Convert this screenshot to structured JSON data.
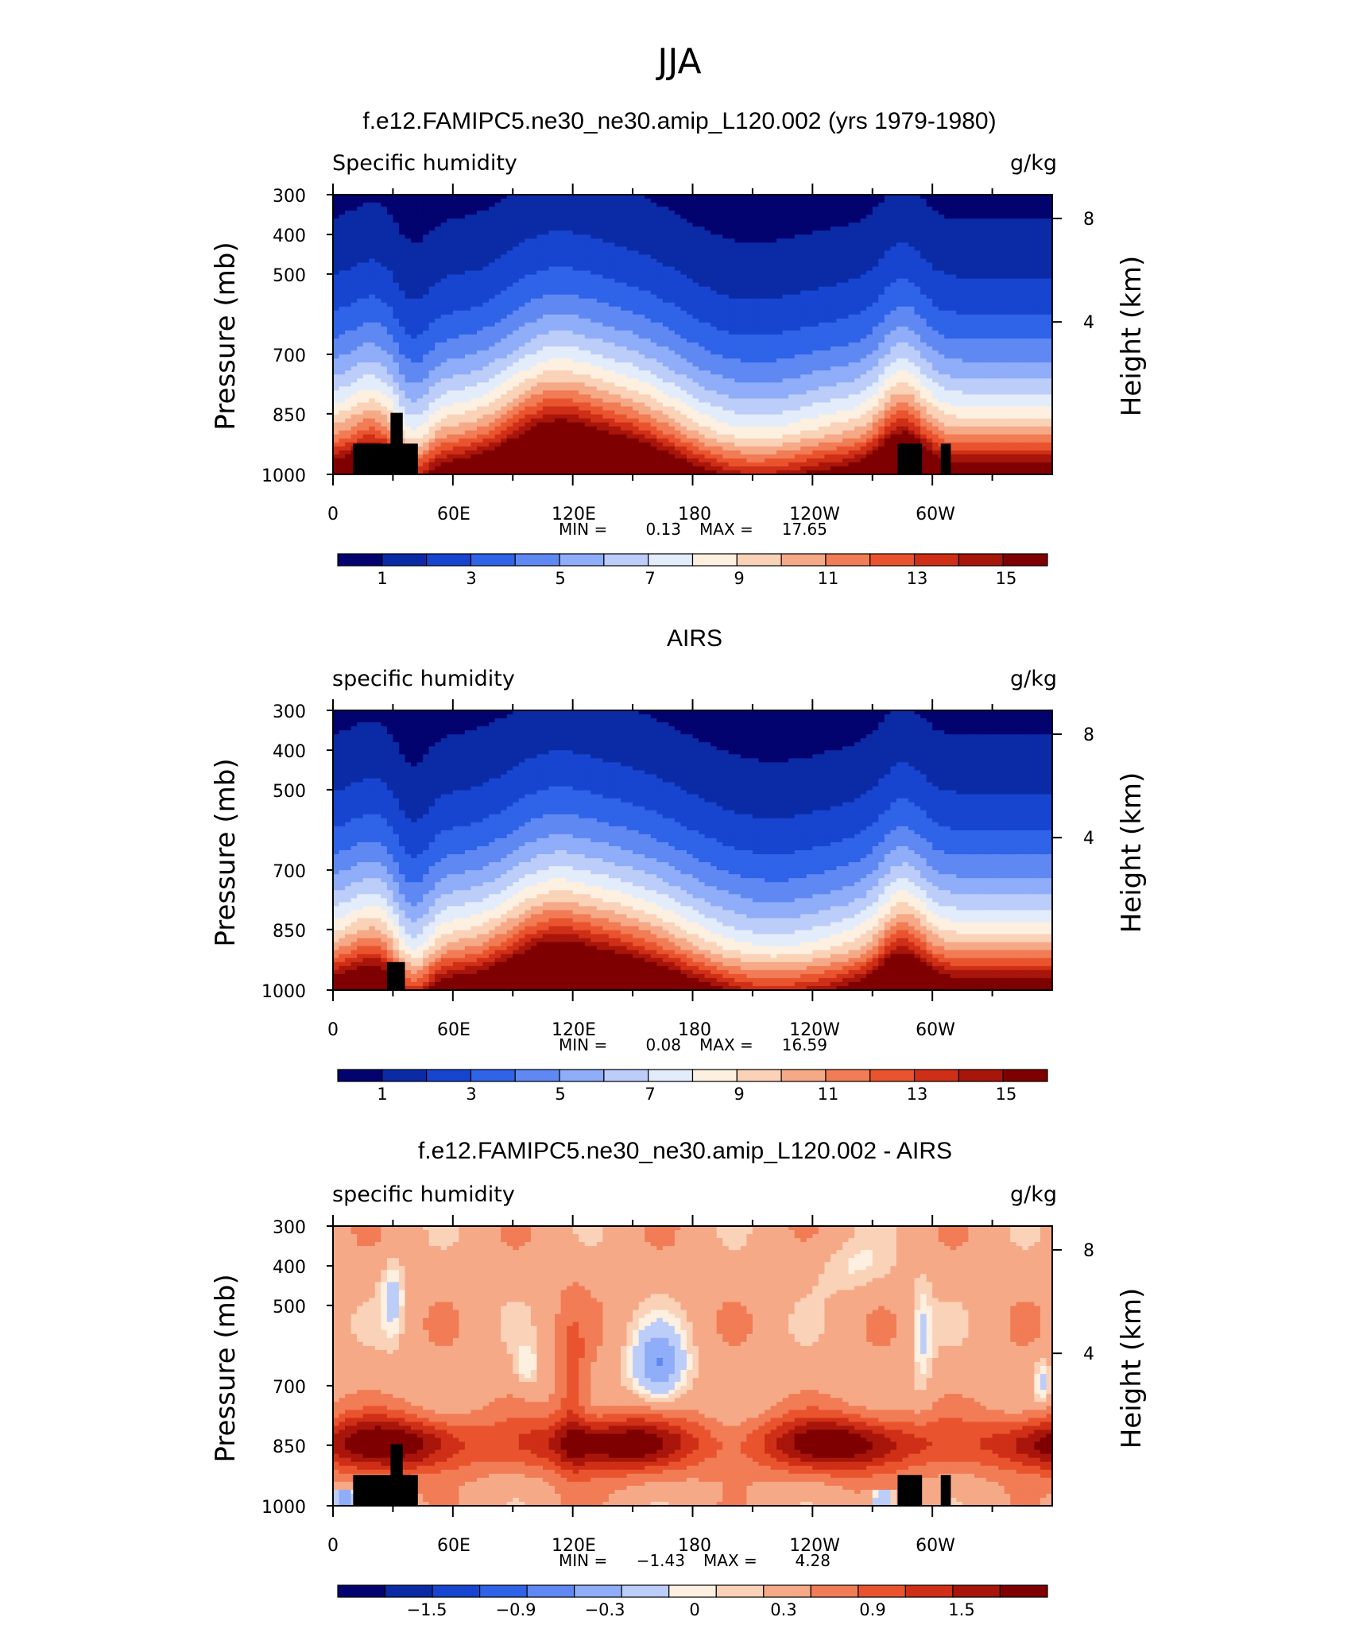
{
  "figure_title": "JJA",
  "colors": {
    "fill_blue_deep": "#000080",
    "fill_red_deep": "#7f0000",
    "land_mask": "#000000"
  },
  "chart_data": [
    {
      "type": "heatmap",
      "title": "f.e12.FAMIPC5.ne30_ne30.amip_L120.002 (yrs 1979-1980)",
      "left_label": "Specific humidity",
      "right_label": "g/kg",
      "ylabel": "Pressure (mb)",
      "ylabel_right": "Height (km)",
      "y_ticks": [
        "300",
        "400",
        "500",
        "700",
        "850",
        "1000"
      ],
      "y_ticks_right": [
        "8",
        "4"
      ],
      "x_ticks": [
        "0",
        "60E",
        "120E",
        "180",
        "120W",
        "60W"
      ],
      "min_label": "MIN =",
      "min_value": "0.13",
      "max_label": "MAX =",
      "max_value": "17.65",
      "colorbar_labels": [
        "1",
        "3",
        "5",
        "7",
        "9",
        "11",
        "13",
        "15"
      ],
      "colorbar_colors": [
        "#03036f",
        "#0b2ba6",
        "#1745d0",
        "#2f63e8",
        "#5f88f2",
        "#8fadf8",
        "#bccdf9",
        "#e3ecfa",
        "#fdf0e0",
        "#fad2b8",
        "#f6a987",
        "#f17c55",
        "#e9542f",
        "#cf2f16",
        "#a8150a",
        "#7f0000"
      ],
      "levels": [
        1,
        2,
        3,
        4,
        5,
        6,
        7,
        8,
        9,
        10,
        11,
        12,
        13,
        14,
        15
      ],
      "mode": "abs"
    },
    {
      "type": "heatmap",
      "title": "AIRS",
      "left_label": "specific humidity",
      "right_label": "g/kg",
      "ylabel": "Pressure (mb)",
      "ylabel_right": "Height (km)",
      "y_ticks": [
        "300",
        "400",
        "500",
        "700",
        "850",
        "1000"
      ],
      "y_ticks_right": [
        "8",
        "4"
      ],
      "x_ticks": [
        "0",
        "60E",
        "120E",
        "180",
        "120W",
        "60W"
      ],
      "min_label": "MIN =",
      "min_value": "0.08",
      "max_label": "MAX =",
      "max_value": "16.59",
      "colorbar_labels": [
        "1",
        "3",
        "5",
        "7",
        "9",
        "11",
        "13",
        "15"
      ],
      "colorbar_colors": [
        "#03036f",
        "#0b2ba6",
        "#1745d0",
        "#2f63e8",
        "#5f88f2",
        "#8fadf8",
        "#bccdf9",
        "#e3ecfa",
        "#fdf0e0",
        "#fad2b8",
        "#f6a987",
        "#f17c55",
        "#e9542f",
        "#cf2f16",
        "#a8150a",
        "#7f0000"
      ],
      "levels": [
        1,
        2,
        3,
        4,
        5,
        6,
        7,
        8,
        9,
        10,
        11,
        12,
        13,
        14,
        15
      ],
      "mode": "abs"
    },
    {
      "type": "heatmap",
      "title": "f.e12.FAMIPC5.ne30_ne30.amip_L120.002 - AIRS",
      "left_label": "specific humidity",
      "right_label": "g/kg",
      "ylabel": "Pressure (mb)",
      "ylabel_right": "Height (km)",
      "y_ticks": [
        "300",
        "400",
        "500",
        "700",
        "850",
        "1000"
      ],
      "y_ticks_right": [
        "8",
        "4"
      ],
      "x_ticks": [
        "0",
        "60E",
        "120E",
        "180",
        "120W",
        "60W"
      ],
      "min_label": "MIN =",
      "min_value": "−1.43",
      "max_label": "MAX =",
      "max_value": "4.28",
      "colorbar_labels": [
        "−1.5",
        "−0.9",
        "−0.3",
        "0",
        "0.3",
        "0.9",
        "1.5"
      ],
      "colorbar_colors": [
        "#03036f",
        "#0b2ba6",
        "#1745d0",
        "#2f63e8",
        "#5f88f2",
        "#8fadf8",
        "#bccdf9",
        "#fdf0e0",
        "#fad2b8",
        "#f6a987",
        "#f17c55",
        "#e9542f",
        "#cf2f16",
        "#a8150a",
        "#7f0000"
      ],
      "levels": [
        -1.8,
        -1.5,
        -1.2,
        -0.9,
        -0.6,
        -0.3,
        0,
        0.15,
        0.3,
        0.6,
        0.9,
        1.2,
        1.5,
        1.8
      ],
      "mode": "diff"
    }
  ]
}
